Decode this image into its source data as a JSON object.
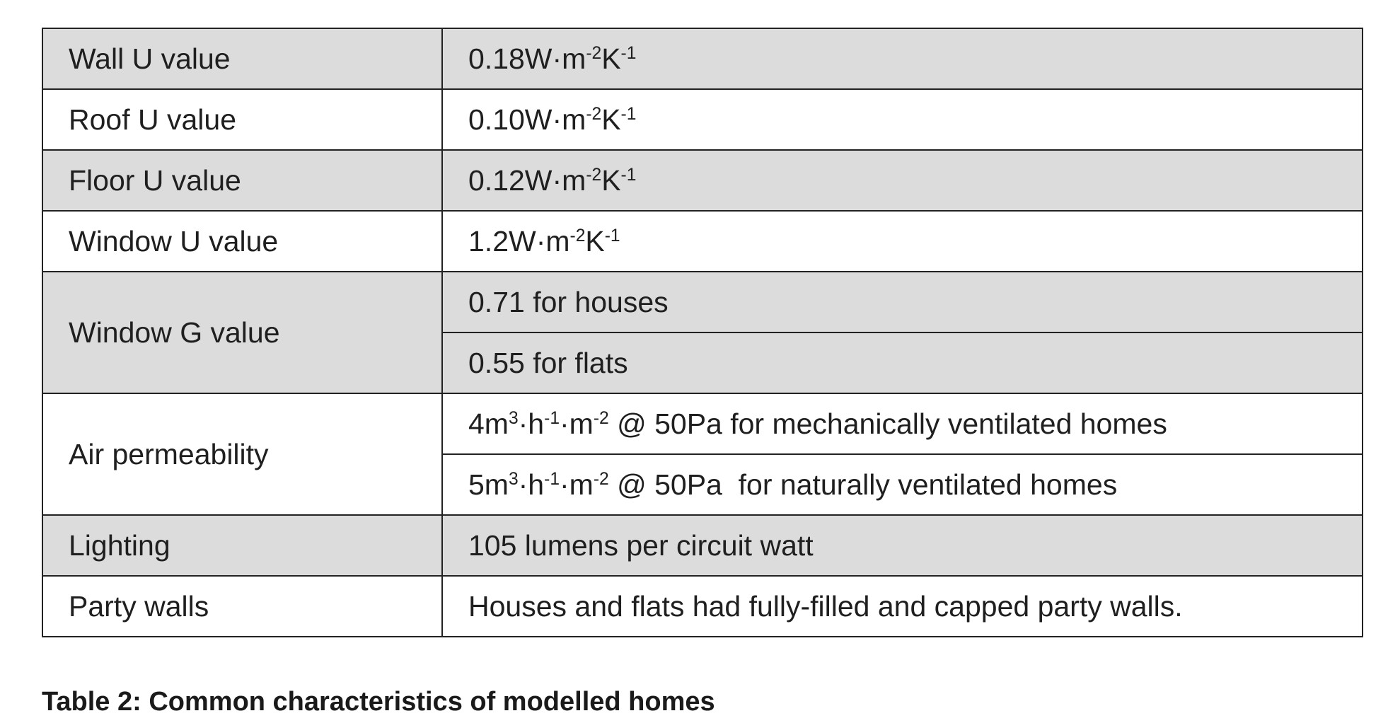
{
  "table": {
    "rows": [
      {
        "label": "Wall U value",
        "value": {
          "prefix": "0.18W·m",
          "sup1": "-2",
          "mid": "K",
          "sup2": "-1",
          "suffix": ""
        }
      },
      {
        "label": "Roof U value",
        "value": {
          "prefix": "0.10W·m",
          "sup1": "-2",
          "mid": "K",
          "sup2": "-1",
          "suffix": ""
        }
      },
      {
        "label": "Floor U value",
        "value": {
          "prefix": "0.12W·m",
          "sup1": "-2",
          "mid": "K",
          "sup2": "-1",
          "suffix": ""
        }
      },
      {
        "label": "Window U value",
        "value": {
          "prefix": "1.2W·m",
          "sup1": "-2",
          "mid": "K",
          "sup2": "-1",
          "suffix": ""
        }
      },
      {
        "label": "Window G value",
        "values": [
          "0.71 for houses",
          "0.55 for flats"
        ]
      },
      {
        "label": "Air permeability",
        "values": [
          {
            "a": "4m",
            "s1": "3",
            "b": "·h",
            "s2": "-1",
            "c": "·m",
            "s3": "-2",
            "d": " @ 50Pa for mechanically ventilated homes"
          },
          {
            "a": "5m",
            "s1": "3",
            "b": "·h",
            "s2": "-1",
            "c": "·m",
            "s3": "-2",
            "d": " @ 50Pa  for naturally ventilated homes"
          }
        ]
      },
      {
        "label": "Lighting",
        "value": "105 lumens per circuit watt"
      },
      {
        "label": "Party walls",
        "value": "Houses and flats had fully-filled and capped party walls."
      }
    ]
  },
  "caption": "Table 2: Common characteristics of modelled homes"
}
